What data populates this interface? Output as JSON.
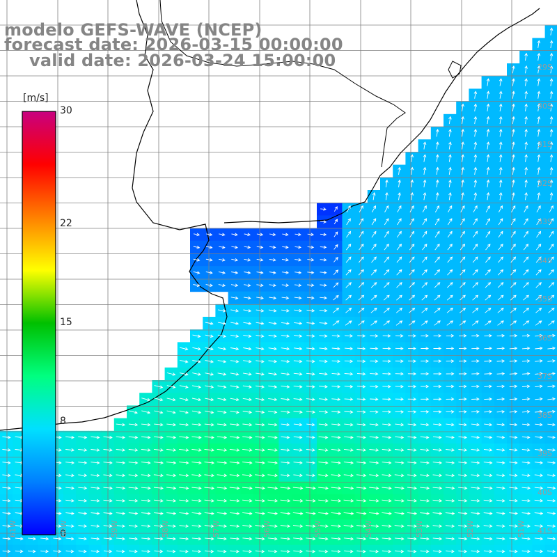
{
  "header": {
    "line1": "modelo GEFS-WAVE (NCEP)",
    "line2": "forecast date: 2026-03-15 00:00:00",
    "line3": "valid date: 2026-03-24 15:00:00"
  },
  "colorbar": {
    "unit": "[m/s]",
    "min": 0,
    "max": 30,
    "ticks": [
      "30",
      "22",
      "15",
      "8",
      "0"
    ],
    "tick_values": [
      30,
      22,
      15,
      8,
      0
    ],
    "colors": [
      "#0000ff",
      "#0080ff",
      "#00e0ff",
      "#00ff80",
      "#00c000",
      "#ffff00",
      "#ff8000",
      "#ff0000",
      "#c80080"
    ]
  },
  "axes": {
    "lat_labels": [
      "29S",
      "30S",
      "31S",
      "32S",
      "33S",
      "34S",
      "35S",
      "36S",
      "37S",
      "38S",
      "39S",
      "40S",
      "41S"
    ],
    "lon_labels": [
      "61W",
      "60W",
      "59W",
      "58W",
      "57W",
      "56W",
      "55W",
      "54W",
      "53W",
      "52W",
      "51W"
    ]
  },
  "colors": {
    "land": "#ffffff",
    "coastline": "#000000",
    "grid": "#808080",
    "arrows": "#ffffff",
    "title": "#858585"
  }
}
